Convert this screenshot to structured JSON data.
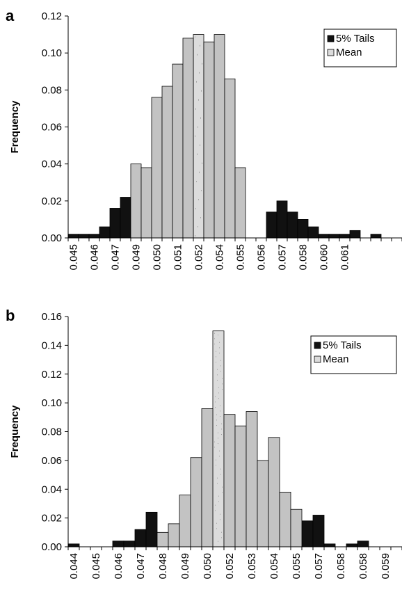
{
  "chart_data": [
    {
      "type": "bar",
      "panel_label": "a",
      "ylabel": "Frequency",
      "ylim": [
        0,
        0.12
      ],
      "yticks": [
        "0.00",
        "0.02",
        "0.04",
        "0.06",
        "0.08",
        "0.10",
        "0.12"
      ],
      "xtick_labels": [
        "0.045",
        "0.046",
        "0.047",
        "0.049",
        "0.050",
        "0.051",
        "0.052",
        "0.054",
        "0.055",
        "0.056",
        "0.057",
        "0.058",
        "0.060",
        "0.061"
      ],
      "legend": {
        "placement": "top-right",
        "entries": [
          "5% Tails",
          "Mean"
        ]
      },
      "series": [
        {
          "name": "5% Tails",
          "color": "#111111",
          "values": [
            0.002,
            0.002,
            0.002,
            0.006,
            0.016,
            0.022,
            null,
            null,
            null,
            null,
            null,
            null,
            null,
            null,
            null,
            null,
            null,
            null,
            null,
            0.014,
            0.02,
            0.014,
            0.01,
            0.006,
            0.002,
            0.002,
            0.002,
            0.004,
            0.0,
            0.002,
            0.0,
            0.0
          ]
        },
        {
          "name": "Mean",
          "color": "#dcdcdc",
          "values": [
            null,
            null,
            null,
            null,
            null,
            null,
            null,
            null,
            null,
            null,
            null,
            null,
            0.11,
            null,
            null,
            null,
            null,
            null,
            null,
            null,
            null,
            null,
            null,
            null,
            null,
            null,
            null,
            null,
            null,
            null,
            null,
            null
          ]
        },
        {
          "name": "",
          "color": "#c3c3c3",
          "values": [
            null,
            null,
            null,
            null,
            null,
            null,
            0.04,
            0.038,
            0.076,
            0.082,
            0.094,
            0.108,
            null,
            0.106,
            0.11,
            0.086,
            0.038,
            null,
            null,
            null,
            null,
            null,
            null,
            null,
            null,
            null,
            null,
            null,
            null,
            null,
            null,
            null
          ]
        }
      ]
    },
    {
      "type": "bar",
      "panel_label": "b",
      "ylabel": "Frequency",
      "ylim": [
        0,
        0.16
      ],
      "yticks": [
        "0.00",
        "0.02",
        "0.04",
        "0.06",
        "0.08",
        "0.10",
        "0.12",
        "0.14",
        "0.16"
      ],
      "xtick_labels": [
        "0.044",
        "0.045",
        "0.046",
        "0.047",
        "0.048",
        "0.049",
        "0.050",
        "0.052",
        "0.053",
        "0.054",
        "0.055",
        "0.057",
        "0.058",
        "0.058",
        "0.059"
      ],
      "legend": {
        "placement": "top-right",
        "entries": [
          "5% Tails",
          "Mean"
        ]
      },
      "series": [
        {
          "name": "5% Tails",
          "color": "#111111",
          "values": [
            0.002,
            0.0,
            0.0,
            0.0,
            0.004,
            0.004,
            0.012,
            0.024,
            null,
            null,
            null,
            null,
            null,
            null,
            null,
            null,
            null,
            null,
            null,
            null,
            null,
            0.018,
            0.022,
            0.002,
            0.0,
            0.002,
            0.004,
            0.0,
            0.0,
            0.0
          ]
        },
        {
          "name": "Mean",
          "color": "#dcdcdc",
          "values": [
            null,
            null,
            null,
            null,
            null,
            null,
            null,
            null,
            null,
            null,
            null,
            null,
            null,
            0.15,
            null,
            null,
            null,
            null,
            null,
            null,
            null,
            null,
            null,
            null,
            null,
            null,
            null,
            null,
            null,
            null
          ]
        },
        {
          "name": "",
          "color": "#c3c3c3",
          "values": [
            null,
            null,
            null,
            null,
            null,
            null,
            null,
            null,
            0.01,
            0.016,
            0.036,
            0.062,
            0.096,
            null,
            0.092,
            0.084,
            0.094,
            0.06,
            0.076,
            0.038,
            0.026,
            null,
            null,
            null,
            null,
            null,
            null,
            null,
            null,
            null
          ]
        }
      ]
    }
  ]
}
